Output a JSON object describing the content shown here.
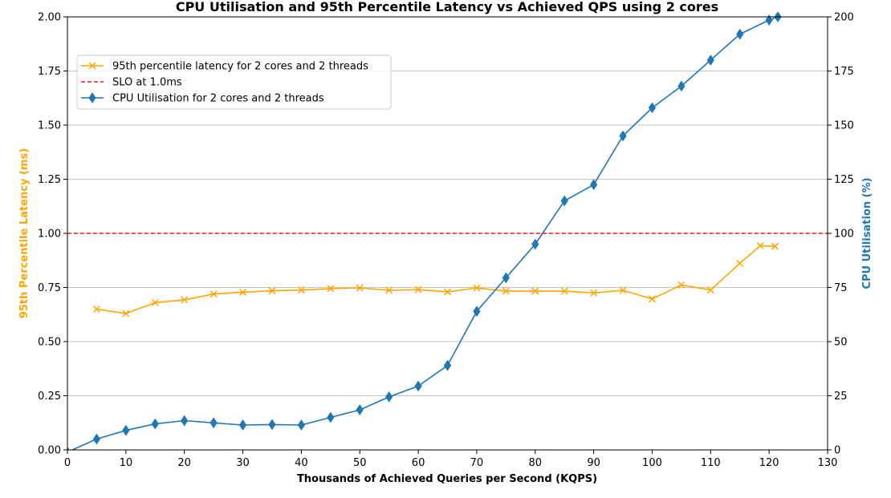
{
  "chart_data": {
    "type": "line",
    "title": "CPU Utilisation and 95th Percentile Latency vs Achieved QPS using 2 cores",
    "xlabel": "Thousands of Achieved Queries per Second (KQPS)",
    "ylabel_left": "95th Percentile Latency (ms)",
    "ylabel_right": "CPU Utilisation (%)",
    "xlim": [
      0,
      130
    ],
    "ylim_left": [
      0,
      2.0
    ],
    "ylim_right": [
      0,
      200
    ],
    "x_ticks": [
      "0",
      "10",
      "20",
      "30",
      "40",
      "50",
      "60",
      "70",
      "80",
      "90",
      "100",
      "110",
      "120",
      "130"
    ],
    "y_left_ticks": [
      "0.00",
      "0.25",
      "0.50",
      "0.75",
      "1.00",
      "1.25",
      "1.50",
      "1.75",
      "2.00"
    ],
    "y_right_ticks": [
      "0",
      "25",
      "50",
      "75",
      "100",
      "125",
      "150",
      "175",
      "200"
    ],
    "grid": "horizontal",
    "legend_position": "upper-left",
    "colors": {
      "latency": "#ffa500",
      "slo": "#e41a1c",
      "cpu": "#1f77b4",
      "left_axis_label": "#ffa500",
      "right_axis_label": "#1f77b4"
    },
    "series": [
      {
        "name": "95th percentile latency for 2 cores and 2 threads",
        "axis": "left",
        "marker": "x",
        "color": "#ffa500",
        "x": [
          5,
          10,
          15,
          20,
          25,
          30,
          35,
          40,
          45,
          50,
          55,
          60,
          65,
          70,
          75,
          80,
          85,
          90,
          95,
          100,
          105,
          110,
          115,
          118.5,
          121
        ],
        "y": [
          0.65,
          0.63,
          0.68,
          0.693,
          0.72,
          0.728,
          0.735,
          0.738,
          0.745,
          0.748,
          0.737,
          0.74,
          0.73,
          0.748,
          0.733,
          0.733,
          0.733,
          0.725,
          0.737,
          0.697,
          0.762,
          0.738,
          0.862,
          0.943,
          0.94
        ]
      },
      {
        "name": "SLO at 1.0ms",
        "axis": "left",
        "style": "dashed",
        "color": "#e41a1c",
        "x": [
          0,
          130
        ],
        "y": [
          1.0,
          1.0
        ]
      },
      {
        "name": "CPU Utilisation for 2 cores and 2 threads",
        "axis": "right",
        "marker": "diamond",
        "color": "#1f77b4",
        "x": [
          0,
          5,
          10,
          15,
          20,
          25,
          30,
          35,
          40,
          45,
          50,
          55,
          60,
          65,
          70,
          75,
          80,
          85,
          90,
          95,
          100,
          105,
          110,
          115,
          120,
          121.5
        ],
        "y": [
          -1,
          5,
          9,
          12,
          13.5,
          12.5,
          11.5,
          11.7,
          11.5,
          15,
          18.5,
          24.5,
          29.5,
          39,
          64,
          79.5,
          95,
          115,
          122.5,
          145,
          158,
          168,
          180,
          192,
          198.5,
          200
        ]
      }
    ]
  }
}
